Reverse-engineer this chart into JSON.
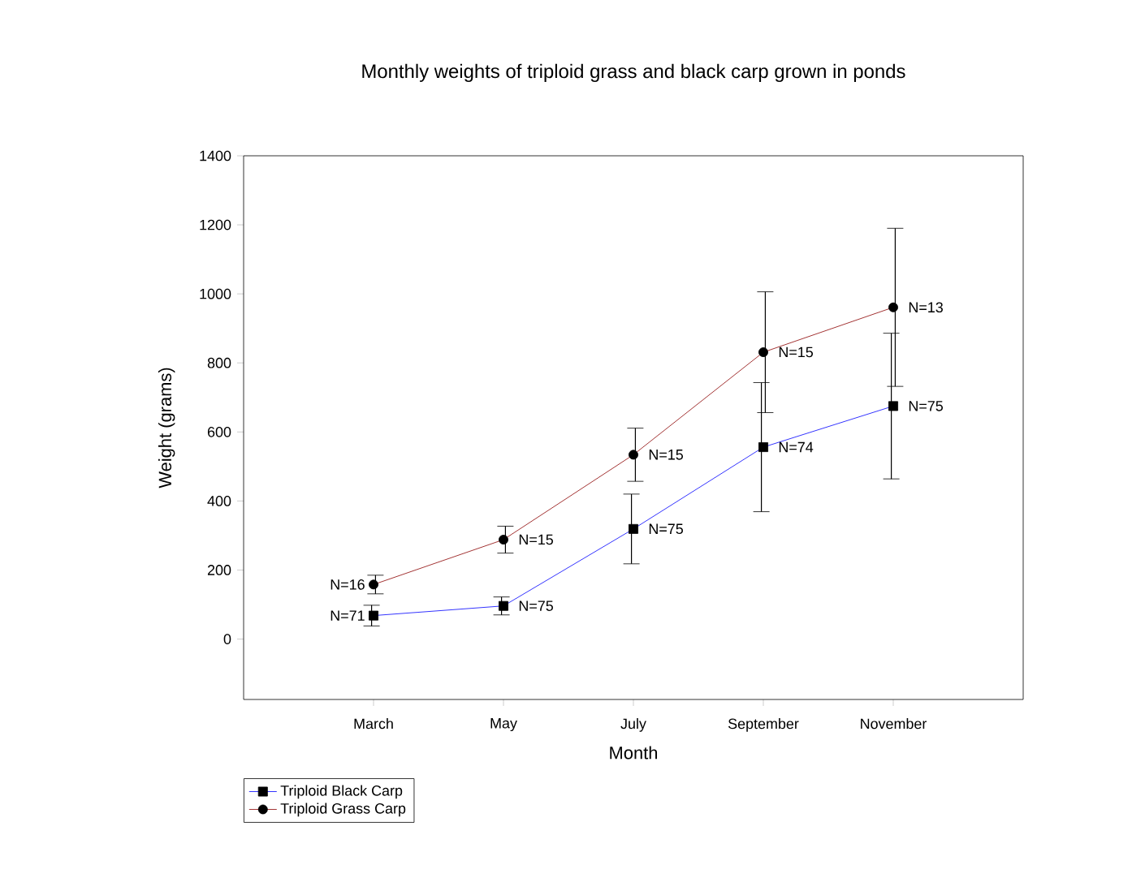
{
  "chart_data": {
    "type": "line",
    "title": "Monthly weights of triploid grass and black carp grown in ponds",
    "xlabel": "Month",
    "ylabel": "Weight (grams)",
    "categories": [
      "March",
      "May",
      "July",
      "September",
      "November"
    ],
    "series": [
      {
        "name": "Triploid Black Carp",
        "color": "#0000ff",
        "marker": "square",
        "values": [
          68,
          96,
          319,
          556,
          675
        ],
        "errors": [
          30,
          26,
          101,
          187,
          211
        ]
      },
      {
        "name": "Triploid Grass Carp",
        "color": "#8b0000",
        "marker": "circle",
        "values": [
          158,
          288,
          534,
          831,
          961
        ],
        "errors": [
          27,
          39,
          77,
          175,
          229
        ]
      }
    ],
    "ylim": [
      -175,
      1400
    ],
    "yticks": [
      0,
      200,
      400,
      600,
      800,
      1000,
      1200,
      1400
    ],
    "grid": false,
    "legend": "bottom left",
    "line_style": "solid",
    "annotations": [
      {
        "text": "N=71",
        "x": "March",
        "y": 68
      },
      {
        "text": "N=75",
        "x": "May",
        "y": 96
      },
      {
        "text": "N=75",
        "x": "July",
        "y": 319
      },
      {
        "text": "N=74",
        "x": "September",
        "y": 556
      },
      {
        "text": "N=75",
        "x": "November",
        "y": 675
      },
      {
        "text": "N=16",
        "x": "March",
        "y": 158
      },
      {
        "text": "N=15",
        "x": "May",
        "y": 288
      },
      {
        "text": "N=15",
        "x": "July",
        "y": 534
      },
      {
        "text": "N=15",
        "x": "September",
        "y": 831
      },
      {
        "text": "N=13",
        "x": "November",
        "y": 961
      }
    ]
  }
}
